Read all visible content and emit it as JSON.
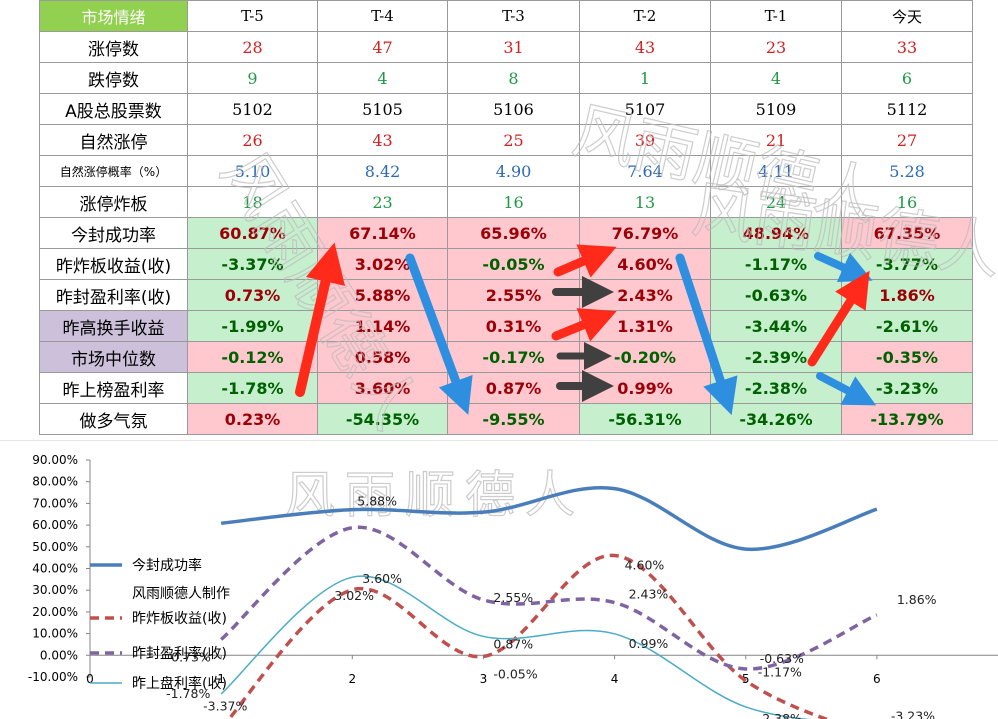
{
  "table": {
    "corner": "市场情绪",
    "headers": [
      "T-5",
      "T-4",
      "T-3",
      "T-2",
      "T-1",
      "今天"
    ],
    "rows": [
      {
        "label": "涨停数",
        "style": "plain",
        "color": "red",
        "values": [
          "28",
          "47",
          "31",
          "43",
          "23",
          "33"
        ]
      },
      {
        "label": "跌停数",
        "style": "plain",
        "color": "green",
        "values": [
          "9",
          "4",
          "8",
          "1",
          "4",
          "6"
        ]
      },
      {
        "label": "A股总股票数",
        "style": "plain",
        "color": "black",
        "values": [
          "5102",
          "5105",
          "5106",
          "5107",
          "5109",
          "5112"
        ]
      },
      {
        "label": "自然涨停",
        "style": "plain",
        "color": "red",
        "values": [
          "26",
          "43",
          "25",
          "39",
          "21",
          "27"
        ]
      },
      {
        "label": "自然涨停概率（%）",
        "style": "plain",
        "color": "blue",
        "small": true,
        "values": [
          "5.10",
          "8.42",
          "4.90",
          "7.64",
          "4.11",
          "5.28"
        ]
      },
      {
        "label": "涨停炸板",
        "style": "plain",
        "color": "green",
        "values": [
          "18",
          "23",
          "16",
          "13",
          "24",
          "16"
        ]
      },
      {
        "label": "今封成功率",
        "style": "cond",
        "values": [
          "60.87%",
          "67.14%",
          "65.96%",
          "76.79%",
          "48.94%",
          "67.35%"
        ],
        "fills": [
          "g",
          "r",
          "r",
          "r",
          "g",
          "r"
        ]
      },
      {
        "label": "昨炸板收益(收)",
        "style": "cond",
        "values": [
          "-3.37%",
          "3.02%",
          "-0.05%",
          "4.60%",
          "-1.17%",
          "-3.77%"
        ],
        "fills": [
          "g",
          "r",
          "r",
          "r",
          "g",
          "g"
        ]
      },
      {
        "label": "昨封盈利率(收)",
        "style": "cond",
        "values": [
          "0.73%",
          "5.88%",
          "2.55%",
          "2.43%",
          "-0.63%",
          "1.86%"
        ],
        "fills": [
          "g",
          "r",
          "r",
          "r",
          "g",
          "g"
        ]
      },
      {
        "label": "昨高换手收益",
        "style": "cond",
        "purple": true,
        "values": [
          "-1.99%",
          "1.14%",
          "0.31%",
          "1.31%",
          "-3.44%",
          "-2.61%"
        ],
        "fills": [
          "g",
          "r",
          "r",
          "r",
          "g",
          "g"
        ]
      },
      {
        "label": "市场中位数",
        "style": "cond",
        "purple": true,
        "values": [
          "-0.12%",
          "0.58%",
          "-0.17%",
          "-0.20%",
          "-2.39%",
          "-0.35%"
        ],
        "fills": [
          "r",
          "r",
          "r",
          "r",
          "g",
          "r"
        ]
      },
      {
        "label": "昨上榜盈利率",
        "style": "cond",
        "values": [
          "-1.78%",
          "3.60%",
          "0.87%",
          "0.99%",
          "-2.38%",
          "-3.23%"
        ],
        "fills": [
          "g",
          "r",
          "r",
          "r",
          "g",
          "g"
        ]
      },
      {
        "label": "做多气氛",
        "style": "cond",
        "values": [
          "0.23%",
          "-54.35%",
          "-9.55%",
          "-56.31%",
          "-34.26%",
          "-13.79%"
        ],
        "fills": [
          "r",
          "g",
          "r",
          "g",
          "g",
          "r"
        ]
      }
    ]
  },
  "watermark": "风雨顺德人",
  "colors": {
    "corner_bg": "#92d050",
    "purple_bg": "#ccc0da",
    "pink_bg": "#ffc7ce",
    "green_bg": "#c6efce",
    "arrow_red": "#ff2a1a",
    "arrow_blue": "#2e8fe0",
    "arrow_dark": "#404040"
  },
  "chart_data": {
    "type": "line",
    "x": [
      1,
      2,
      3,
      4,
      5,
      6
    ],
    "xlim": [
      0,
      7
    ],
    "x_ticks": [
      "0",
      "1",
      "2",
      "3",
      "4",
      "5",
      "6"
    ],
    "ylim": [
      -10,
      90
    ],
    "y_ticks": [
      "-10.00%",
      "0.00%",
      "10.00%",
      "20.00%",
      "30.00%",
      "40.00%",
      "50.00%",
      "60.00%",
      "70.00%",
      "80.00%",
      "90.00%"
    ],
    "smooth": true,
    "grid": false,
    "legend_position": "left",
    "credit": "风雨顺德人制作",
    "series": [
      {
        "name": "今封成功率",
        "color": "#4a7ebb",
        "width": 3.5,
        "dash": "",
        "values": [
          60.87,
          67.14,
          65.96,
          76.79,
          48.94,
          67.35
        ],
        "labels": []
      },
      {
        "name": "昨炸板收益(收)",
        "color": "#c0504d",
        "width": 3.5,
        "dash": "9,6",
        "values": [
          -3.37,
          3.02,
          -0.05,
          4.6,
          -1.17,
          -3.77
        ],
        "labels": [
          "-3.37%",
          "3.02%",
          "-0.05%",
          "4.60%",
          "-1.17%",
          "-3.77%"
        ]
      },
      {
        "name": "昨封盈利率(收)",
        "color": "#8064a2",
        "width": 3.5,
        "dash": "9,6",
        "values": [
          0.73,
          5.88,
          2.55,
          2.43,
          -0.63,
          1.86
        ],
        "labels": [
          "0.73%",
          "5.88%",
          "2.55%",
          "2.43%",
          "-0.63%",
          "1.86%"
        ]
      },
      {
        "name": "昨上盘利率(收)",
        "color": "#4bacc6",
        "width": 1.5,
        "dash": "",
        "values": [
          -1.78,
          3.6,
          0.87,
          0.99,
          -2.38,
          -3.23
        ],
        "labels": [
          "-1.78%",
          "3.60%",
          "0.87%",
          "0.99%",
          "-2.38%",
          "-3.23%"
        ]
      }
    ]
  }
}
